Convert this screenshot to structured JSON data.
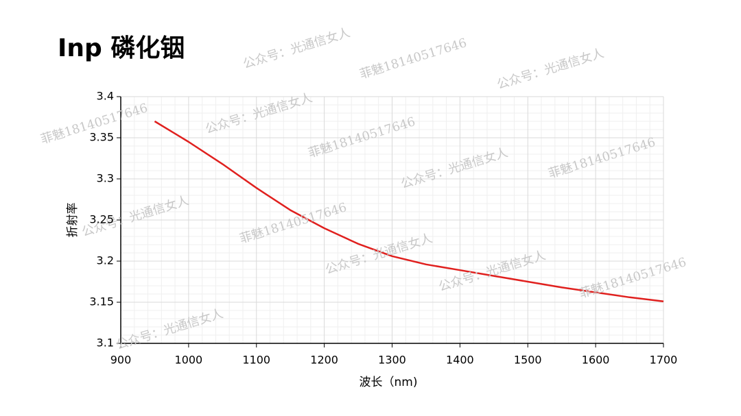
{
  "chart_data": {
    "type": "line",
    "title": "Inp 磷化铟",
    "x_label": "波长（nm)",
    "y_label": "折射率",
    "x": [
      950,
      1000,
      1050,
      1100,
      1150,
      1200,
      1250,
      1300,
      1350,
      1400,
      1450,
      1500,
      1550,
      1600,
      1650,
      1700
    ],
    "series": [
      {
        "name": "InP",
        "color": "#e0201e",
        "values": [
          3.37,
          3.345,
          3.318,
          3.289,
          3.262,
          3.24,
          3.221,
          3.206,
          3.196,
          3.189,
          3.182,
          3.175,
          3.168,
          3.162,
          3.156,
          3.151
        ]
      }
    ],
    "xlim": [
      900,
      1700
    ],
    "xticks": [
      900,
      1000,
      1100,
      1200,
      1300,
      1400,
      1500,
      1600,
      1700
    ],
    "ylim": [
      3.1,
      3.4
    ],
    "yticks": [
      3.1,
      3.15,
      3.2,
      3.25,
      3.3,
      3.35,
      3.4
    ],
    "grid": true,
    "minor_grid": true
  },
  "watermarks": [
    "公众号：光通信女人",
    "菲魅18140517646",
    "公众号：光通信女人",
    "菲魅18140517646",
    "公众号：光通信女人",
    "菲魅18140517646",
    "公众号：光通信女人",
    "菲魅18140517646",
    "公众号：光通信女人",
    "菲魅18140517646",
    "公众号：光通信女人",
    "公众号：光通信女人",
    "菲魅18140517646",
    "公众号：光通信女人"
  ]
}
